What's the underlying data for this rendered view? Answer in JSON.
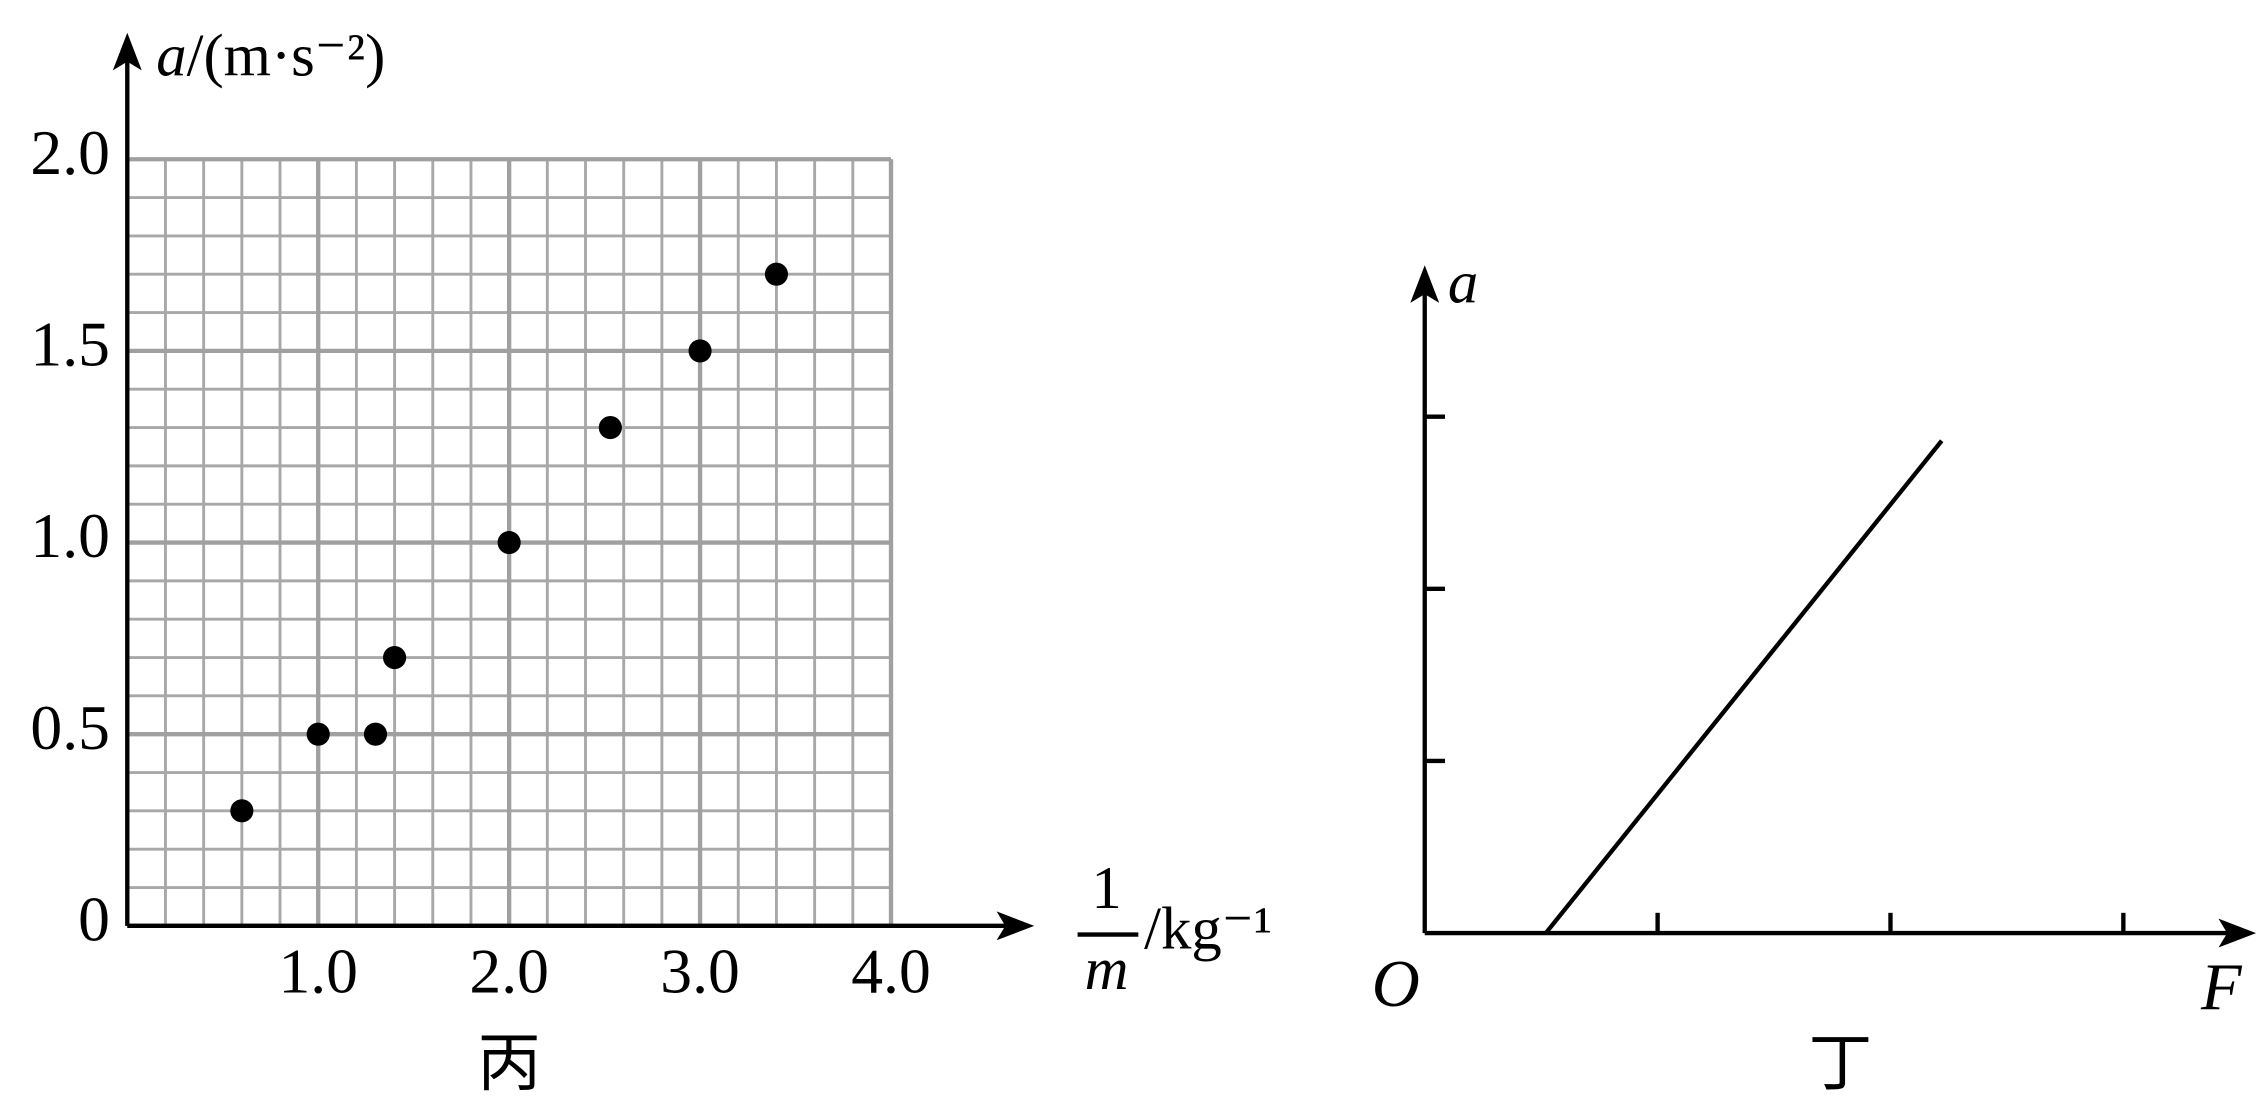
{
  "chart_data": [
    {
      "type": "scatter",
      "caption": "丙",
      "y_label": {
        "symbol": "a",
        "unit": "/(m·s⁻²)"
      },
      "x_label": {
        "numerator": "1",
        "denominator": "m",
        "unit": "/kg⁻¹"
      },
      "x": [
        0.6,
        1.0,
        1.3,
        1.4,
        2.0,
        2.53,
        3.0,
        3.4
      ],
      "values": [
        0.3,
        0.5,
        0.5,
        0.7,
        1.0,
        1.3,
        1.5,
        1.7
      ],
      "color": "#000000",
      "xlim": [
        0,
        4.75
      ],
      "ylim": [
        0,
        2.33
      ],
      "xticks": [
        {
          "value": 1,
          "label": "1.0"
        },
        {
          "value": 2,
          "label": "2.0"
        },
        {
          "value": 3,
          "label": "3.0"
        },
        {
          "value": 4,
          "label": "4.0"
        }
      ],
      "yticks": [
        0,
        0.5,
        {
          "value": 1,
          "label": "1.0"
        },
        1.5,
        {
          "value": 2,
          "label": "2.0"
        }
      ],
      "grid": true,
      "minor_grid": {
        "x": 0.2,
        "y": 0.1
      }
    },
    {
      "type": "line",
      "caption": "丁",
      "origin_label": "O",
      "x_label": "F",
      "y_label": "a",
      "x": [
        0.52,
        2.22
      ],
      "values": [
        0,
        2.86
      ],
      "color": "#000000",
      "xlim": [
        0,
        3.57
      ],
      "ylim": [
        0,
        3.88
      ],
      "xticks": [
        1,
        2,
        3
      ],
      "yticks": [
        1,
        2,
        3
      ],
      "tick_labels": false,
      "grid": false
    }
  ]
}
